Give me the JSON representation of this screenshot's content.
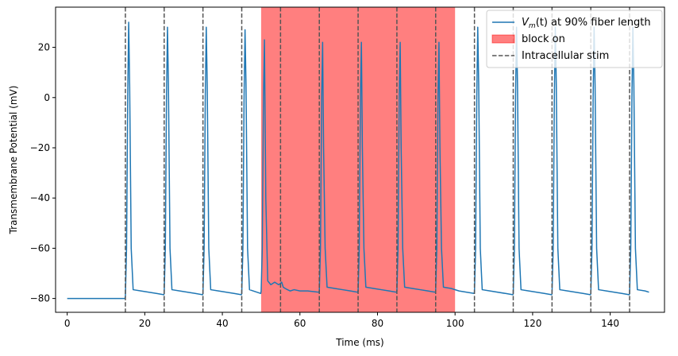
{
  "chart_data": {
    "type": "line",
    "title": "",
    "xlabel": "Time (ms)",
    "ylabel": "Transmembrane Potential (mV)",
    "xlim": [
      -3,
      154
    ],
    "ylim": [
      -85.5,
      36
    ],
    "xticks": [
      0,
      20,
      40,
      60,
      80,
      100,
      120,
      140
    ],
    "xtick_labels": [
      "0",
      "20",
      "40",
      "60",
      "80",
      "100",
      "120",
      "140"
    ],
    "yticks": [
      -80,
      -60,
      -40,
      -20,
      0,
      20
    ],
    "ytick_labels": [
      "−80",
      "−60",
      "−40",
      "−20",
      "0",
      "20"
    ],
    "grid": false,
    "legend_position": "top-right",
    "legend": [
      {
        "label_prefix": "V",
        "label_sub": "m",
        "label_suffix": "(t) at 90% fiber length",
        "kind": "line",
        "color": "#1f77b4"
      },
      {
        "label": "block on",
        "kind": "patch",
        "color": "#ff0000"
      },
      {
        "label": "Intracellular stim",
        "kind": "dashed",
        "color": "#555555"
      }
    ],
    "series": [
      {
        "color": "#1f77b4",
        "x": [
          0,
          14.9,
          15.0,
          15.3,
          15.6,
          15.85,
          16.1,
          16.5,
          17,
          19,
          23,
          24.9,
          25.0,
          25.3,
          25.6,
          25.85,
          26.1,
          26.5,
          27,
          29,
          33,
          34.9,
          35.0,
          35.3,
          35.6,
          35.85,
          36.1,
          36.5,
          37,
          39,
          43,
          44.9,
          45.0,
          45.3,
          45.6,
          45.85,
          46.1,
          46.5,
          47,
          49.9,
          50.0,
          50.3,
          50.6,
          50.85,
          51.2,
          51.7,
          52.5,
          53.5,
          54.5,
          55.0,
          55.3,
          55.7,
          56.2,
          56.8,
          57.5,
          58.5,
          60,
          62,
          64.9,
          65.0,
          65.3,
          65.6,
          65.85,
          66.1,
          66.5,
          67,
          69,
          71,
          73,
          74.9,
          75.0,
          75.3,
          75.6,
          75.85,
          76.1,
          76.5,
          77,
          79,
          81,
          83,
          84.9,
          85.0,
          85.3,
          85.6,
          85.85,
          86.1,
          86.5,
          87,
          89,
          91,
          93,
          94.9,
          95.0,
          95.3,
          95.6,
          95.85,
          96.1,
          96.5,
          97,
          99,
          101,
          104.9,
          105.0,
          105.3,
          105.6,
          105.85,
          106.1,
          106.5,
          107,
          109,
          113,
          114.9,
          115.0,
          115.3,
          115.6,
          115.85,
          116.1,
          116.5,
          117,
          119,
          123,
          124.9,
          125.0,
          125.3,
          125.6,
          125.85,
          126.1,
          126.5,
          127,
          129,
          133,
          134.9,
          135.0,
          135.3,
          135.6,
          135.85,
          136.1,
          136.5,
          137,
          139,
          143,
          144.9,
          145.0,
          145.3,
          145.6,
          145.85,
          146.1,
          146.5,
          147,
          149,
          150
        ],
        "y": [
          -80,
          -80,
          -79,
          -60,
          0,
          30,
          5,
          -60,
          -76.5,
          -77,
          -78,
          -78.5,
          -78,
          -60,
          0,
          28,
          5,
          -60,
          -76.5,
          -77,
          -78,
          -78.5,
          -78,
          -60,
          0,
          28,
          5,
          -60,
          -76.5,
          -77,
          -78,
          -78.5,
          -78,
          -60,
          0,
          27,
          5,
          -60,
          -76.5,
          -78,
          -77,
          -60,
          0,
          23,
          -40,
          -73,
          -74.5,
          -73.5,
          -74.5,
          -74,
          -73.5,
          -75.5,
          -76,
          -76.5,
          -77,
          -76.5,
          -77,
          -77,
          -77.5,
          -77,
          -60,
          0,
          22,
          -20,
          -60,
          -75.5,
          -76,
          -76.5,
          -77,
          -77.5,
          -77,
          -60,
          0,
          22,
          -20,
          -60,
          -75.5,
          -76,
          -76.5,
          -77,
          -77.5,
          -77,
          -60,
          0,
          22,
          -20,
          -60,
          -75.5,
          -76,
          -76.5,
          -77,
          -77.5,
          -77,
          -60,
          0,
          22,
          -20,
          -60,
          -75.5,
          -76,
          -77,
          -78,
          -77.5,
          -60,
          0,
          28,
          5,
          -60,
          -76.5,
          -77,
          -78,
          -78.5,
          -78,
          -60,
          0,
          28,
          5,
          -60,
          -76.5,
          -77,
          -78,
          -78.5,
          -78,
          -60,
          0,
          28,
          5,
          -60,
          -76.5,
          -77,
          -78,
          -78.5,
          -78,
          -60,
          0,
          28,
          5,
          -60,
          -76.5,
          -77,
          -78,
          -78.5,
          -78,
          -60,
          0,
          28,
          5,
          -60,
          -76.5,
          -77,
          -77.5
        ]
      }
    ],
    "block_span": [
      50,
      100
    ],
    "stim_times": [
      15,
      25,
      35,
      45,
      55,
      65,
      75,
      85,
      95,
      105,
      115,
      125,
      135,
      145
    ]
  }
}
